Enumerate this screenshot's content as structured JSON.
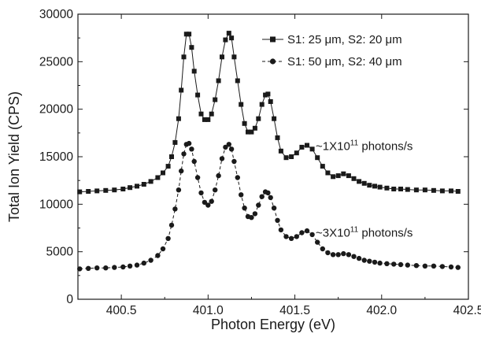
{
  "chart_data": {
    "type": "line",
    "title": "",
    "xlabel": "Photon Energy (eV)",
    "ylabel": "Total Ion Yield (CPS)",
    "xlim": [
      400.25,
      402.5
    ],
    "ylim": [
      0,
      30000
    ],
    "x_ticks": [
      400.5,
      401.0,
      401.5,
      402.0,
      402.5
    ],
    "x_tick_labels": [
      "400.5",
      "401.0",
      "401.5",
      "402.0",
      "402.5"
    ],
    "y_ticks": [
      0,
      5000,
      10000,
      15000,
      20000,
      25000,
      30000
    ],
    "y_tick_labels": [
      "0",
      "5000",
      "10000",
      "15000",
      "20000",
      "25000",
      "30000"
    ],
    "grid": false,
    "legend_position": "top-right",
    "series": [
      {
        "name": "S1: 25 μm, S2: 20 μm",
        "marker": "square",
        "line_style": "solid",
        "color": "#1a1a1a",
        "points": [
          [
            400.26,
            11300
          ],
          [
            400.31,
            11350
          ],
          [
            400.36,
            11400
          ],
          [
            400.41,
            11450
          ],
          [
            400.46,
            11500
          ],
          [
            400.51,
            11600
          ],
          [
            400.55,
            11750
          ],
          [
            400.59,
            11900
          ],
          [
            400.63,
            12100
          ],
          [
            400.67,
            12400
          ],
          [
            400.71,
            12800
          ],
          [
            400.74,
            13300
          ],
          [
            400.77,
            14000
          ],
          [
            400.79,
            15000
          ],
          [
            400.81,
            16500
          ],
          [
            400.83,
            19000
          ],
          [
            400.845,
            22000
          ],
          [
            400.86,
            25500
          ],
          [
            400.875,
            27900
          ],
          [
            400.89,
            27900
          ],
          [
            400.905,
            26500
          ],
          [
            400.92,
            24000
          ],
          [
            400.94,
            21500
          ],
          [
            400.96,
            19500
          ],
          [
            400.98,
            18900
          ],
          [
            401.0,
            18900
          ],
          [
            401.02,
            19500
          ],
          [
            401.04,
            21000
          ],
          [
            401.06,
            23000
          ],
          [
            401.08,
            25500
          ],
          [
            401.1,
            27300
          ],
          [
            401.12,
            28000
          ],
          [
            401.135,
            27500
          ],
          [
            401.15,
            25500
          ],
          [
            401.17,
            23000
          ],
          [
            401.19,
            20500
          ],
          [
            401.21,
            18500
          ],
          [
            401.23,
            17600
          ],
          [
            401.25,
            17600
          ],
          [
            401.27,
            18000
          ],
          [
            401.29,
            19000
          ],
          [
            401.31,
            20500
          ],
          [
            401.33,
            21500
          ],
          [
            401.345,
            21600
          ],
          [
            401.36,
            20800
          ],
          [
            401.38,
            19000
          ],
          [
            401.4,
            17000
          ],
          [
            401.42,
            15600
          ],
          [
            401.45,
            14900
          ],
          [
            401.48,
            15000
          ],
          [
            401.51,
            15400
          ],
          [
            401.54,
            16000
          ],
          [
            401.57,
            16200
          ],
          [
            401.6,
            15800
          ],
          [
            401.63,
            14900
          ],
          [
            401.66,
            14000
          ],
          [
            401.69,
            13300
          ],
          [
            401.72,
            12900
          ],
          [
            401.75,
            13000
          ],
          [
            401.78,
            13200
          ],
          [
            401.81,
            13000
          ],
          [
            401.84,
            12700
          ],
          [
            401.87,
            12400
          ],
          [
            401.9,
            12200
          ],
          [
            401.93,
            12000
          ],
          [
            401.96,
            11900
          ],
          [
            401.99,
            11800
          ],
          [
            402.03,
            11700
          ],
          [
            402.07,
            11600
          ],
          [
            402.11,
            11600
          ],
          [
            402.15,
            11550
          ],
          [
            402.2,
            11500
          ],
          [
            402.25,
            11500
          ],
          [
            402.3,
            11450
          ],
          [
            402.35,
            11400
          ],
          [
            402.4,
            11400
          ],
          [
            402.44,
            11350
          ]
        ]
      },
      {
        "name": "S1: 50 μm, S2: 40 μm",
        "marker": "circle",
        "line_style": "dashed",
        "color": "#1a1a1a",
        "points": [
          [
            400.26,
            3200
          ],
          [
            400.31,
            3250
          ],
          [
            400.36,
            3300
          ],
          [
            400.41,
            3300
          ],
          [
            400.46,
            3350
          ],
          [
            400.51,
            3400
          ],
          [
            400.55,
            3500
          ],
          [
            400.59,
            3600
          ],
          [
            400.63,
            3800
          ],
          [
            400.67,
            4100
          ],
          [
            400.71,
            4600
          ],
          [
            400.74,
            5300
          ],
          [
            400.77,
            6400
          ],
          [
            400.79,
            7800
          ],
          [
            400.81,
            9500
          ],
          [
            400.83,
            11500
          ],
          [
            400.845,
            13500
          ],
          [
            400.86,
            15300
          ],
          [
            400.875,
            16300
          ],
          [
            400.89,
            16400
          ],
          [
            400.905,
            15800
          ],
          [
            400.92,
            14500
          ],
          [
            400.94,
            12800
          ],
          [
            400.96,
            11200
          ],
          [
            400.98,
            10200
          ],
          [
            401.0,
            9900
          ],
          [
            401.02,
            10300
          ],
          [
            401.04,
            11500
          ],
          [
            401.06,
            13000
          ],
          [
            401.08,
            14800
          ],
          [
            401.1,
            16000
          ],
          [
            401.12,
            16300
          ],
          [
            401.135,
            15800
          ],
          [
            401.15,
            14500
          ],
          [
            401.17,
            12800
          ],
          [
            401.19,
            11000
          ],
          [
            401.21,
            9600
          ],
          [
            401.23,
            8700
          ],
          [
            401.25,
            8600
          ],
          [
            401.27,
            9000
          ],
          [
            401.29,
            9900
          ],
          [
            401.31,
            10800
          ],
          [
            401.33,
            11300
          ],
          [
            401.345,
            11200
          ],
          [
            401.36,
            10700
          ],
          [
            401.38,
            9600
          ],
          [
            401.4,
            8300
          ],
          [
            401.42,
            7300
          ],
          [
            401.45,
            6600
          ],
          [
            401.48,
            6400
          ],
          [
            401.51,
            6600
          ],
          [
            401.54,
            7000
          ],
          [
            401.57,
            7200
          ],
          [
            401.6,
            6800
          ],
          [
            401.63,
            6000
          ],
          [
            401.66,
            5300
          ],
          [
            401.69,
            4900
          ],
          [
            401.72,
            4700
          ],
          [
            401.75,
            4700
          ],
          [
            401.78,
            4800
          ],
          [
            401.81,
            4700
          ],
          [
            401.84,
            4500
          ],
          [
            401.87,
            4300
          ],
          [
            401.9,
            4100
          ],
          [
            401.93,
            4000
          ],
          [
            401.96,
            3900
          ],
          [
            401.99,
            3800
          ],
          [
            402.03,
            3750
          ],
          [
            402.07,
            3700
          ],
          [
            402.11,
            3650
          ],
          [
            402.15,
            3600
          ],
          [
            402.2,
            3550
          ],
          [
            402.25,
            3500
          ],
          [
            402.3,
            3500
          ],
          [
            402.35,
            3450
          ],
          [
            402.4,
            3400
          ],
          [
            402.44,
            3350
          ]
        ]
      }
    ],
    "annotations": [
      {
        "base": "~1X10",
        "exponent": "11",
        "suffix": " photons/s",
        "x": 401.62,
        "y": 15700
      },
      {
        "base": "~3X10",
        "exponent": "11",
        "suffix": " photons/s",
        "x": 401.62,
        "y": 6600
      }
    ]
  }
}
